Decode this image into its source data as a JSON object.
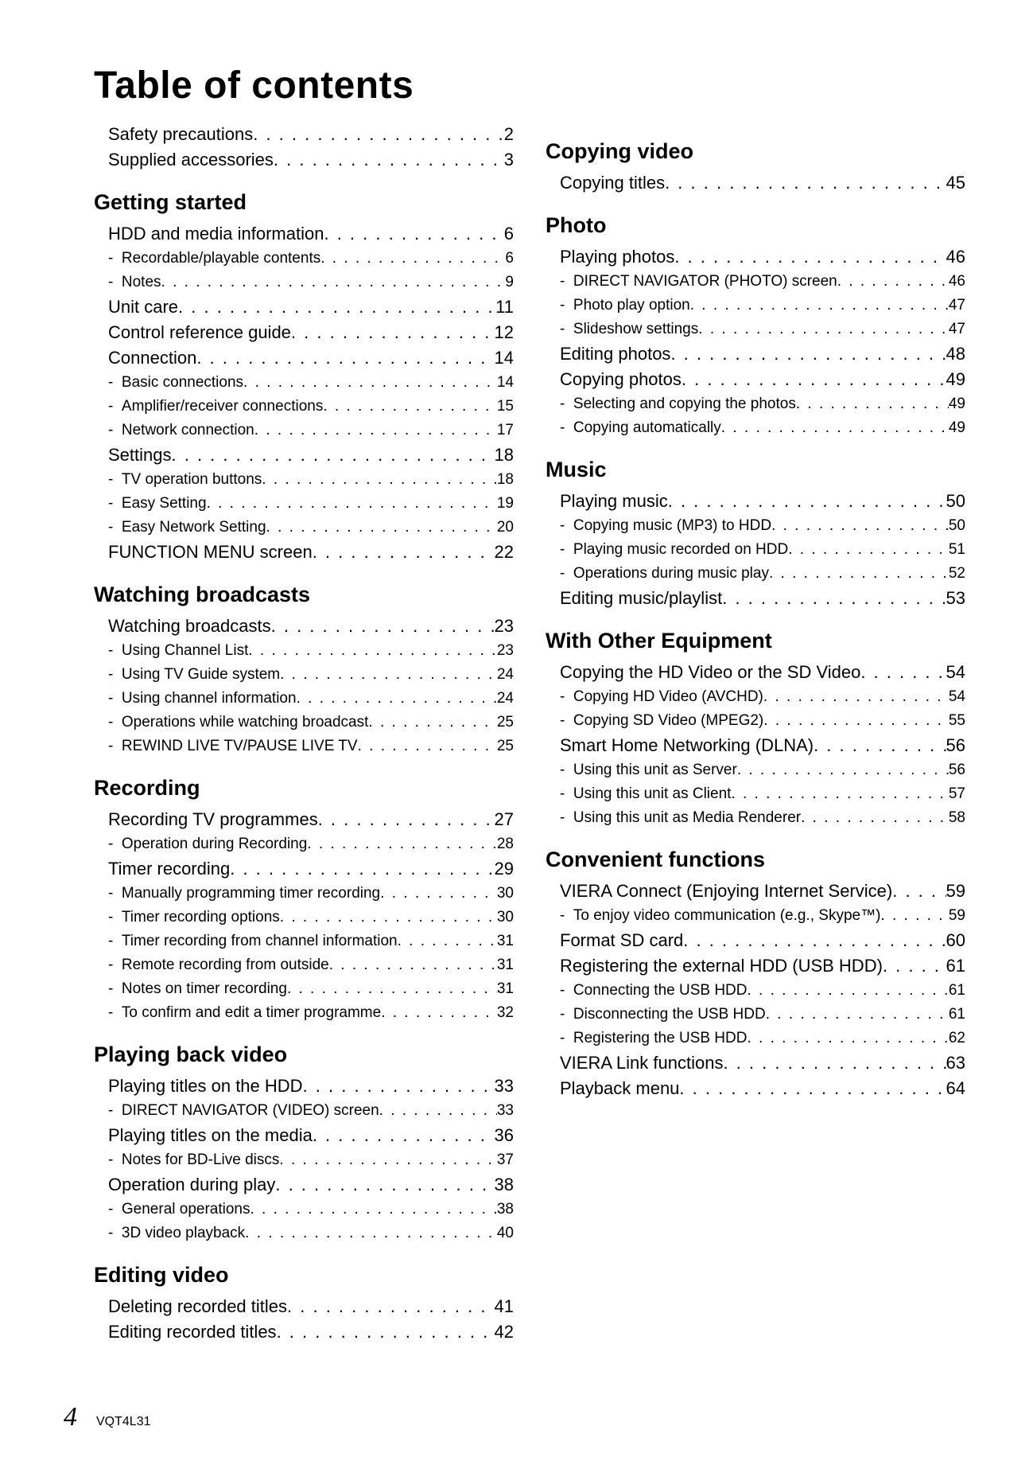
{
  "page_title": "Table of contents",
  "footer": {
    "page_number": "4",
    "doc_code": "VQT4L31"
  },
  "left": [
    {
      "type": "l1",
      "label": "Safety precautions",
      "pg": "2"
    },
    {
      "type": "l1",
      "label": "Supplied accessories",
      "pg": "3"
    },
    {
      "type": "head",
      "label": "Getting started"
    },
    {
      "type": "l1",
      "label": "HDD and media information",
      "pg": "6"
    },
    {
      "type": "l2",
      "label": "Recordable/playable contents",
      "pg": "6"
    },
    {
      "type": "l2",
      "label": "Notes",
      "pg": "9"
    },
    {
      "type": "l1",
      "label": "Unit care",
      "pg": "11"
    },
    {
      "type": "l1",
      "label": "Control reference guide",
      "pg": "12"
    },
    {
      "type": "l1",
      "label": "Connection",
      "pg": "14"
    },
    {
      "type": "l2",
      "label": "Basic connections",
      "pg": "14"
    },
    {
      "type": "l2",
      "label": "Amplifier/receiver connections",
      "pg": "15"
    },
    {
      "type": "l2",
      "label": "Network connection",
      "pg": "17"
    },
    {
      "type": "l1",
      "label": "Settings",
      "pg": "18"
    },
    {
      "type": "l2",
      "label": "TV operation buttons",
      "pg": "18"
    },
    {
      "type": "l2",
      "label": "Easy Setting",
      "pg": "19"
    },
    {
      "type": "l2",
      "label": "Easy Network Setting",
      "pg": "20"
    },
    {
      "type": "l1",
      "label": "FUNCTION MENU screen",
      "pg": "22"
    },
    {
      "type": "head",
      "label": "Watching broadcasts"
    },
    {
      "type": "l1",
      "label": "Watching broadcasts",
      "pg": "23"
    },
    {
      "type": "l2",
      "label": "Using Channel List",
      "pg": "23"
    },
    {
      "type": "l2",
      "label": "Using TV Guide system",
      "pg": "24"
    },
    {
      "type": "l2",
      "label": "Using channel information",
      "pg": "24"
    },
    {
      "type": "l2",
      "label": "Operations while watching broadcast",
      "pg": "25"
    },
    {
      "type": "l2",
      "label": "REWIND LIVE TV/PAUSE LIVE TV",
      "pg": "25"
    },
    {
      "type": "head",
      "label": "Recording"
    },
    {
      "type": "l1",
      "label": "Recording TV programmes",
      "pg": "27"
    },
    {
      "type": "l2",
      "label": "Operation during Recording",
      "pg": "28"
    },
    {
      "type": "l1",
      "label": "Timer recording",
      "pg": "29"
    },
    {
      "type": "l2",
      "label": "Manually programming timer recording",
      "pg": "30"
    },
    {
      "type": "l2",
      "label": "Timer recording options",
      "pg": "30"
    },
    {
      "type": "l2",
      "label": "Timer recording from channel information",
      "pg": "31"
    },
    {
      "type": "l2",
      "label": "Remote recording from outside",
      "pg": "31"
    },
    {
      "type": "l2",
      "label": "Notes on timer recording",
      "pg": "31"
    },
    {
      "type": "l2",
      "label": "To confirm and edit a timer programme",
      "pg": "32"
    },
    {
      "type": "head",
      "label": "Playing back video"
    },
    {
      "type": "l1",
      "label": "Playing titles on the HDD",
      "pg": "33"
    },
    {
      "type": "l2",
      "label": "DIRECT NAVIGATOR (VIDEO) screen",
      "pg": "33"
    },
    {
      "type": "l1",
      "label": "Playing titles on the media",
      "pg": "36"
    },
    {
      "type": "l2",
      "label": "Notes for BD-Live discs",
      "pg": "37"
    },
    {
      "type": "l1",
      "label": "Operation during play",
      "pg": "38"
    },
    {
      "type": "l2",
      "label": "General operations",
      "pg": "38"
    },
    {
      "type": "l2",
      "label": "3D video playback",
      "pg": "40"
    },
    {
      "type": "head",
      "label": "Editing video"
    },
    {
      "type": "l1",
      "label": "Deleting recorded titles",
      "pg": "41"
    },
    {
      "type": "l1",
      "label": "Editing recorded titles",
      "pg": "42"
    }
  ],
  "right": [
    {
      "type": "head",
      "label": "Copying video"
    },
    {
      "type": "l1",
      "label": "Copying titles",
      "pg": "45"
    },
    {
      "type": "head",
      "label": "Photo"
    },
    {
      "type": "l1",
      "label": "Playing photos",
      "pg": "46"
    },
    {
      "type": "l2",
      "label": "DIRECT NAVIGATOR (PHOTO) screen",
      "pg": "46"
    },
    {
      "type": "l2",
      "label": "Photo play option",
      "pg": "47"
    },
    {
      "type": "l2",
      "label": "Slideshow settings",
      "pg": "47"
    },
    {
      "type": "l1",
      "label": "Editing photos",
      "pg": "48"
    },
    {
      "type": "l1",
      "label": "Copying photos",
      "pg": "49"
    },
    {
      "type": "l2",
      "label": "Selecting and copying the photos",
      "pg": "49"
    },
    {
      "type": "l2",
      "label": "Copying automatically",
      "pg": "49"
    },
    {
      "type": "head",
      "label": "Music"
    },
    {
      "type": "l1",
      "label": "Playing music",
      "pg": "50"
    },
    {
      "type": "l2",
      "label": "Copying music (MP3) to HDD",
      "pg": "50"
    },
    {
      "type": "l2",
      "label": "Playing music recorded on HDD",
      "pg": "51"
    },
    {
      "type": "l2",
      "label": "Operations during music play",
      "pg": "52"
    },
    {
      "type": "l1",
      "label": "Editing music/playlist",
      "pg": "53"
    },
    {
      "type": "head",
      "label": "With Other Equipment"
    },
    {
      "type": "l1",
      "label": "Copying the HD Video or the SD Video",
      "pg": "54"
    },
    {
      "type": "l2",
      "label": "Copying HD Video (AVCHD)",
      "pg": "54"
    },
    {
      "type": "l2",
      "label": "Copying SD Video (MPEG2)",
      "pg": "55"
    },
    {
      "type": "l1",
      "label": "Smart Home Networking (DLNA)",
      "pg": "56"
    },
    {
      "type": "l2",
      "label": "Using this unit as Server",
      "pg": "56"
    },
    {
      "type": "l2",
      "label": "Using this unit as Client",
      "pg": "57"
    },
    {
      "type": "l2",
      "label": "Using this unit as Media Renderer",
      "pg": "58"
    },
    {
      "type": "head",
      "label": "Convenient functions"
    },
    {
      "type": "l1",
      "label": "VIERA Connect (Enjoying Internet Service)",
      "pg": "59"
    },
    {
      "type": "l2",
      "label": "To enjoy video communication (e.g., Skype™)",
      "pg": "59"
    },
    {
      "type": "l1",
      "label": "Format SD card",
      "pg": "60"
    },
    {
      "type": "l1",
      "label": "Registering the external HDD (USB HDD)",
      "pg": "61"
    },
    {
      "type": "l2",
      "label": "Connecting the USB HDD",
      "pg": "61"
    },
    {
      "type": "l2",
      "label": "Disconnecting the USB HDD",
      "pg": "61"
    },
    {
      "type": "l2",
      "label": "Registering the USB HDD",
      "pg": "62"
    },
    {
      "type": "l1",
      "label": "VIERA Link functions",
      "pg": "63"
    },
    {
      "type": "l1",
      "label": "Playback menu",
      "pg": "64"
    }
  ]
}
